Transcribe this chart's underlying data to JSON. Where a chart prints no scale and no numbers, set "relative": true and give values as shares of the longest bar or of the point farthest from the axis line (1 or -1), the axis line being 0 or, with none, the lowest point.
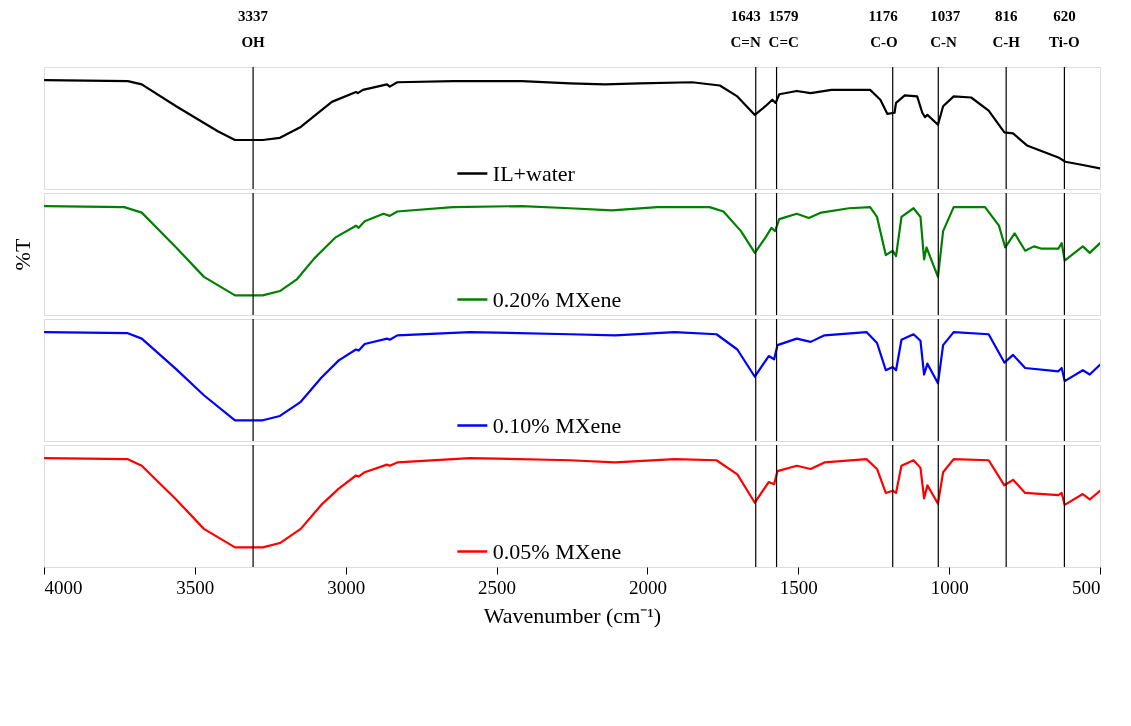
{
  "chart_data": [
    {
      "type": "line",
      "relative": true,
      "xlim": [
        4000,
        500
      ],
      "tick_labels": false,
      "legend": "bottom",
      "ref_lines": [
        {
          "axis": "x",
          "value": 3307,
          "label": "3337\nOH",
          "color": "#000000"
        },
        {
          "axis": "x",
          "value": 1641,
          "label": "1643\nC=N",
          "color": "#000000"
        },
        {
          "axis": "x",
          "value": 1572,
          "label": "1579\nC=C",
          "color": "#000000"
        },
        {
          "axis": "x",
          "value": 1187,
          "label": "1176\nC-O",
          "color": "#000000"
        },
        {
          "axis": "x",
          "value": 1036,
          "label": "1037\nC-N",
          "color": "#000000"
        },
        {
          "axis": "x",
          "value": 811,
          "label": "816\nC-H",
          "color": "#000000"
        },
        {
          "axis": "x",
          "value": 618,
          "label": "620\nTi-O",
          "color": "#000000"
        }
      ],
      "series": [
        {
          "name": "IL+water",
          "color": "#000000",
          "x": [
            3997,
            3722,
            3676,
            3562,
            3424,
            3367,
            3275,
            3218,
            3149,
            3046,
            2966,
            2960,
            2943,
            2863,
            2854,
            2829,
            2645,
            2416,
            2257,
            2141,
            2026,
            1852,
            1760,
            1702,
            1644,
            1609,
            1586,
            1575,
            1563,
            1505,
            1459,
            1390,
            1262,
            1228,
            1205,
            1181,
            1176,
            1147,
            1106,
            1089,
            1080,
            1072,
            1037,
            1020,
            985,
            927,
            869,
            817,
            788,
            742,
            638,
            615,
            557,
            500
          ],
          "values": [
            1.0,
            0.99,
            0.96,
            0.76,
            0.53,
            0.45,
            0.45,
            0.47,
            0.57,
            0.8,
            0.89,
            0.88,
            0.91,
            0.96,
            0.94,
            0.98,
            0.99,
            0.99,
            0.97,
            0.96,
            0.97,
            0.98,
            0.95,
            0.85,
            0.68,
            0.76,
            0.82,
            0.79,
            0.87,
            0.9,
            0.88,
            0.91,
            0.91,
            0.82,
            0.69,
            0.7,
            0.79,
            0.86,
            0.85,
            0.7,
            0.66,
            0.68,
            0.59,
            0.76,
            0.85,
            0.84,
            0.72,
            0.52,
            0.51,
            0.4,
            0.29,
            0.25,
            0.22,
            0.19
          ]
        }
      ]
    },
    {
      "type": "line",
      "relative": true,
      "xlim": [
        4000,
        500
      ],
      "tick_labels": false,
      "legend": "bottom",
      "ylabel": "%T",
      "ref_lines": [
        {
          "axis": "x",
          "value": 3307,
          "label": null,
          "color": "#000000"
        },
        {
          "axis": "x",
          "value": 1641,
          "label": null,
          "color": "#000000"
        },
        {
          "axis": "x",
          "value": 1572,
          "label": null,
          "color": "#000000"
        },
        {
          "axis": "x",
          "value": 1187,
          "label": null,
          "color": "#000000"
        },
        {
          "axis": "x",
          "value": 1036,
          "label": null,
          "color": "#000000"
        },
        {
          "axis": "x",
          "value": 811,
          "label": null,
          "color": "#000000"
        },
        {
          "axis": "x",
          "value": 618,
          "label": null,
          "color": "#000000"
        }
      ],
      "series": [
        {
          "name": "0.20% MXene",
          "color": "#008000",
          "x": [
            3997,
            3734,
            3676,
            3562,
            3470,
            3367,
            3275,
            3218,
            3161,
            3104,
            3035,
            2966,
            2957,
            2937,
            2875,
            2854,
            2829,
            2645,
            2416,
            2257,
            2118,
            1968,
            1794,
            1748,
            1690,
            1644,
            1609,
            1589,
            1577,
            1563,
            1505,
            1465,
            1424,
            1332,
            1262,
            1239,
            1210,
            1187,
            1176,
            1158,
            1118,
            1095,
            1083,
            1075,
            1037,
            1020,
            985,
            881,
            835,
            814,
            783,
            748,
            719,
            696,
            638,
            627,
            617,
            557,
            534,
            500
          ],
          "values": [
            1.0,
            0.99,
            0.94,
            0.62,
            0.35,
            0.18,
            0.18,
            0.22,
            0.33,
            0.52,
            0.71,
            0.82,
            0.8,
            0.86,
            0.93,
            0.91,
            0.95,
            0.99,
            1.0,
            0.98,
            0.96,
            0.99,
            0.99,
            0.95,
            0.77,
            0.57,
            0.71,
            0.8,
            0.77,
            0.88,
            0.93,
            0.89,
            0.94,
            0.98,
            0.99,
            0.9,
            0.55,
            0.59,
            0.54,
            0.9,
            0.98,
            0.9,
            0.51,
            0.62,
            0.35,
            0.77,
            0.99,
            0.99,
            0.82,
            0.62,
            0.75,
            0.59,
            0.63,
            0.61,
            0.61,
            0.66,
            0.5,
            0.63,
            0.57,
            0.66
          ]
        }
      ]
    },
    {
      "type": "line",
      "relative": true,
      "xlim": [
        4000,
        500
      ],
      "tick_labels": false,
      "legend": "bottom",
      "ref_lines": [
        {
          "axis": "x",
          "value": 3307,
          "label": null,
          "color": "#000000"
        },
        {
          "axis": "x",
          "value": 1641,
          "label": null,
          "color": "#000000"
        },
        {
          "axis": "x",
          "value": 1572,
          "label": null,
          "color": "#000000"
        },
        {
          "axis": "x",
          "value": 1187,
          "label": null,
          "color": "#000000"
        },
        {
          "axis": "x",
          "value": 1036,
          "label": null,
          "color": "#000000"
        },
        {
          "axis": "x",
          "value": 811,
          "label": null,
          "color": "#000000"
        },
        {
          "axis": "x",
          "value": 618,
          "label": null,
          "color": "#000000"
        }
      ],
      "series": [
        {
          "name": "0.10% MXene",
          "color": "#0000ff",
          "x": [
            3997,
            3722,
            3676,
            3562,
            3470,
            3367,
            3275,
            3218,
            3149,
            3081,
            3023,
            2966,
            2957,
            2937,
            2863,
            2854,
            2829,
            2588,
            2257,
            2107,
            1910,
            1771,
            1702,
            1644,
            1598,
            1580,
            1569,
            1505,
            1459,
            1413,
            1274,
            1239,
            1210,
            1187,
            1176,
            1158,
            1118,
            1095,
            1083,
            1072,
            1037,
            1020,
            985,
            869,
            817,
            788,
            748,
            638,
            627,
            617,
            557,
            534,
            500
          ],
          "values": [
            1.0,
            0.99,
            0.94,
            0.66,
            0.42,
            0.19,
            0.19,
            0.23,
            0.36,
            0.58,
            0.74,
            0.84,
            0.83,
            0.89,
            0.94,
            0.93,
            0.97,
            1.0,
            0.98,
            0.97,
            1.0,
            0.98,
            0.84,
            0.59,
            0.78,
            0.75,
            0.88,
            0.94,
            0.91,
            0.97,
            1.0,
            0.9,
            0.65,
            0.68,
            0.65,
            0.93,
            0.98,
            0.92,
            0.61,
            0.71,
            0.53,
            0.88,
            1.0,
            0.98,
            0.72,
            0.79,
            0.67,
            0.64,
            0.67,
            0.55,
            0.65,
            0.61,
            0.7
          ]
        }
      ]
    },
    {
      "type": "line",
      "relative": true,
      "xlim": [
        4000,
        500
      ],
      "xticks": [
        4000,
        3500,
        3000,
        2500,
        2000,
        1500,
        1000,
        500
      ],
      "xlabel": "Wavenumber (cm⁻¹)",
      "tick_labels": "x",
      "legend": "bottom",
      "ref_lines": [
        {
          "axis": "x",
          "value": 3307,
          "label": null,
          "color": "#000000"
        },
        {
          "axis": "x",
          "value": 1641,
          "label": null,
          "color": "#000000"
        },
        {
          "axis": "x",
          "value": 1572,
          "label": null,
          "color": "#000000"
        },
        {
          "axis": "x",
          "value": 1187,
          "label": null,
          "color": "#000000"
        },
        {
          "axis": "x",
          "value": 1036,
          "label": null,
          "color": "#000000"
        },
        {
          "axis": "x",
          "value": 811,
          "label": null,
          "color": "#000000"
        },
        {
          "axis": "x",
          "value": 618,
          "label": null,
          "color": "#000000"
        }
      ],
      "series": [
        {
          "name": "0.05% MXene",
          "color": "#ff0000",
          "x": [
            3997,
            3722,
            3676,
            3562,
            3470,
            3367,
            3275,
            3218,
            3149,
            3081,
            3023,
            2966,
            2957,
            2937,
            2863,
            2854,
            2829,
            2588,
            2257,
            2107,
            1910,
            1771,
            1702,
            1644,
            1598,
            1580,
            1569,
            1505,
            1459,
            1413,
            1274,
            1239,
            1210,
            1187,
            1176,
            1158,
            1118,
            1095,
            1083,
            1072,
            1037,
            1020,
            985,
            869,
            817,
            788,
            748,
            638,
            627,
            617,
            557,
            534,
            500
          ],
          "values": [
            1.0,
            0.99,
            0.93,
            0.62,
            0.35,
            0.18,
            0.18,
            0.22,
            0.35,
            0.57,
            0.72,
            0.84,
            0.83,
            0.87,
            0.94,
            0.93,
            0.96,
            1.0,
            0.98,
            0.96,
            0.99,
            0.98,
            0.85,
            0.59,
            0.78,
            0.76,
            0.88,
            0.93,
            0.9,
            0.96,
            0.99,
            0.9,
            0.68,
            0.7,
            0.68,
            0.93,
            0.98,
            0.91,
            0.63,
            0.75,
            0.58,
            0.87,
            0.99,
            0.98,
            0.75,
            0.8,
            0.68,
            0.66,
            0.68,
            0.57,
            0.67,
            0.62,
            0.7
          ]
        }
      ]
    }
  ]
}
